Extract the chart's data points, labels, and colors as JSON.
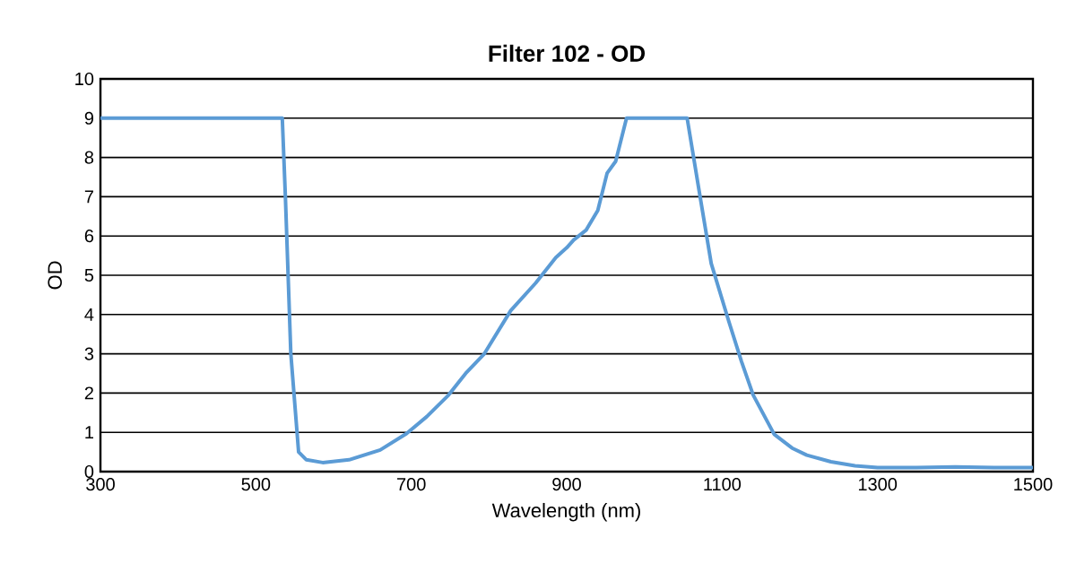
{
  "chart_data": {
    "type": "line",
    "title": "Filter 102 - OD",
    "xlabel": "Wavelength (nm)",
    "ylabel": "OD",
    "x": [
      300,
      400,
      500,
      530,
      534,
      538,
      545,
      555,
      565,
      586,
      620,
      660,
      694,
      720,
      748,
      770,
      794,
      828,
      860,
      886,
      900,
      909,
      925,
      940,
      952,
      963,
      977,
      1000,
      1030,
      1055,
      1070,
      1086,
      1109,
      1125,
      1140,
      1167,
      1190,
      1209,
      1240,
      1271,
      1300,
      1350,
      1400,
      1450,
      1500
    ],
    "series": [
      {
        "color": "#5b9bd5",
        "values": [
          9,
          9,
          9,
          9,
          9,
          7,
          3,
          0.5,
          0.3,
          0.23,
          0.3,
          0.55,
          0.97,
          1.4,
          1.95,
          2.5,
          3.0,
          4.1,
          4.8,
          5.45,
          5.7,
          5.9,
          6.15,
          6.65,
          7.6,
          7.9,
          9,
          9,
          9,
          9,
          7.2,
          5.3,
          3.8,
          2.8,
          1.95,
          0.95,
          0.6,
          0.42,
          0.25,
          0.15,
          0.1,
          0.1,
          0.12,
          0.1,
          0.1
        ]
      }
    ],
    "xlim": [
      300,
      1500
    ],
    "ylim": [
      0,
      10
    ],
    "xticks": [
      300,
      500,
      700,
      900,
      1100,
      1300,
      1500
    ],
    "yticks": [
      0,
      1,
      2,
      3,
      4,
      5,
      6,
      7,
      8,
      9,
      10
    ],
    "grid": "y",
    "marker": "none",
    "line_style": "solid"
  }
}
